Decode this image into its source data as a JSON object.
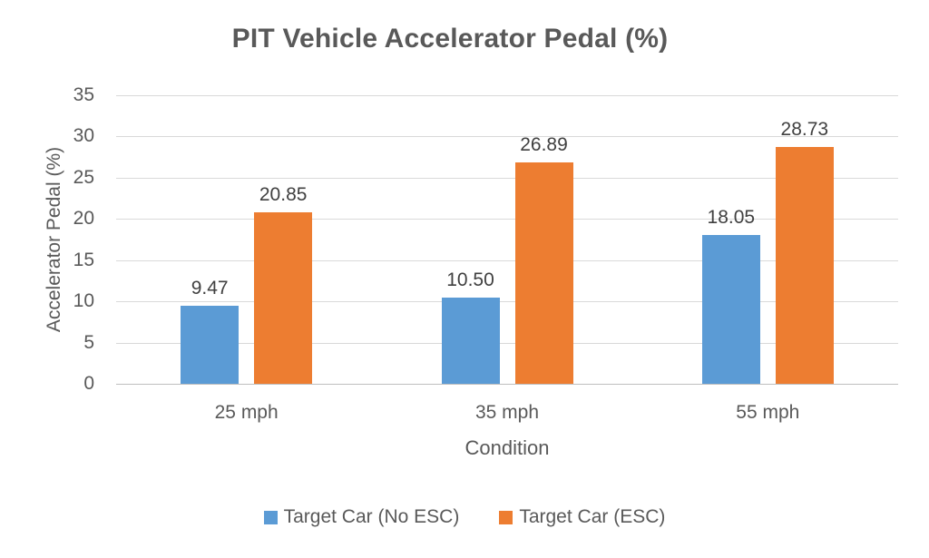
{
  "chart_data": {
    "type": "bar",
    "title": "PIT Vehicle Accelerator Pedal (%)",
    "xlabel": "Condition",
    "ylabel": "Accelerator Pedal (%)",
    "categories": [
      "25 mph",
      "35 mph",
      "55 mph"
    ],
    "series": [
      {
        "name": "Target Car (No ESC)",
        "color": "#5B9BD5",
        "values": [
          9.47,
          10.5,
          18.05
        ],
        "labels": [
          "9.47",
          "10.50",
          "18.05"
        ]
      },
      {
        "name": "Target Car (ESC)",
        "color": "#ED7D31",
        "values": [
          20.85,
          26.89,
          28.73
        ],
        "labels": [
          "20.85",
          "26.89",
          "28.73"
        ]
      }
    ],
    "ylim": [
      0,
      35
    ],
    "yticks": [
      0,
      5,
      10,
      15,
      20,
      25,
      30,
      35
    ],
    "grid": true,
    "legend_position": "bottom"
  },
  "colors": {
    "title_text": "#595959",
    "axis_text": "#595959",
    "data_label_text": "#404040",
    "gridline": "#D9D9D9",
    "axis_line": "#BFBFBF",
    "background": "#FFFFFF"
  }
}
